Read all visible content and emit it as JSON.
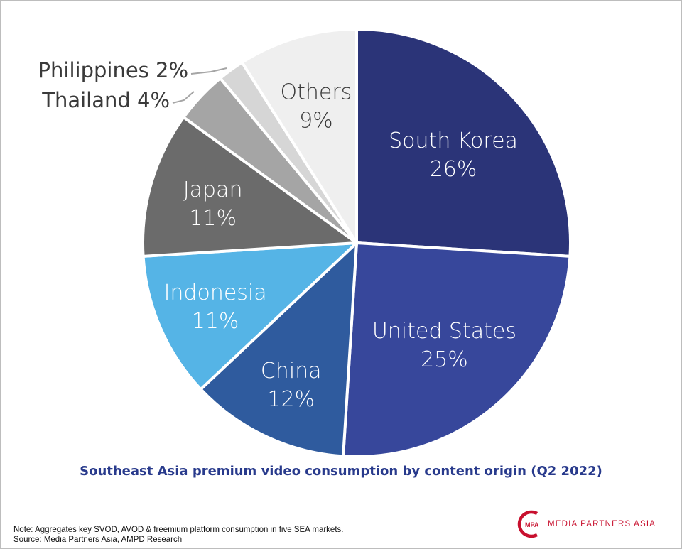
{
  "chart_data": {
    "type": "pie",
    "title": "Southeast Asia premium video consumption by content origin (Q2 2022)",
    "slices": [
      {
        "label": "South Korea",
        "value": 26,
        "display": "26%",
        "color": "#2b3478",
        "text_color": "#ffffff",
        "label_position": "inside"
      },
      {
        "label": "United States",
        "value": 25,
        "display": "25%",
        "color": "#37479b",
        "text_color": "#ffffff",
        "label_position": "inside"
      },
      {
        "label": "China",
        "value": 12,
        "display": "12%",
        "color": "#2f5b9e",
        "text_color": "#ffffff",
        "label_position": "inside"
      },
      {
        "label": "Indonesia",
        "value": 11,
        "display": "11%",
        "color": "#55b4e6",
        "text_color": "#ffffff",
        "label_position": "inside"
      },
      {
        "label": "Japan",
        "value": 11,
        "display": "11%",
        "color": "#6b6b6b",
        "text_color": "#ffffff",
        "label_position": "inside"
      },
      {
        "label": "Thailand",
        "value": 4,
        "display": "4%",
        "color": "#a5a5a5",
        "text_color": "#3a3a3a",
        "label_position": "outside"
      },
      {
        "label": "Philippines",
        "value": 2,
        "display": "2%",
        "color": "#d6d6d6",
        "text_color": "#3a3a3a",
        "label_position": "outside"
      },
      {
        "label": "Others",
        "value": 9,
        "display": "9%",
        "color": "#efefef",
        "text_color": "#3a3a3a",
        "label_position": "inside"
      }
    ],
    "start": "12 o'clock",
    "direction": "clockwise",
    "legend": "none"
  },
  "footnote": {
    "note": "Note: Aggregates key SVOD, AVOD & freemium platform consumption in five SEA markets.",
    "source": "Source: Media Partners Asia, AMPD Research"
  },
  "brand": {
    "logo_text": "MPA",
    "name": "MEDIA PARTNERS ASIA",
    "color": "#c8102e"
  }
}
